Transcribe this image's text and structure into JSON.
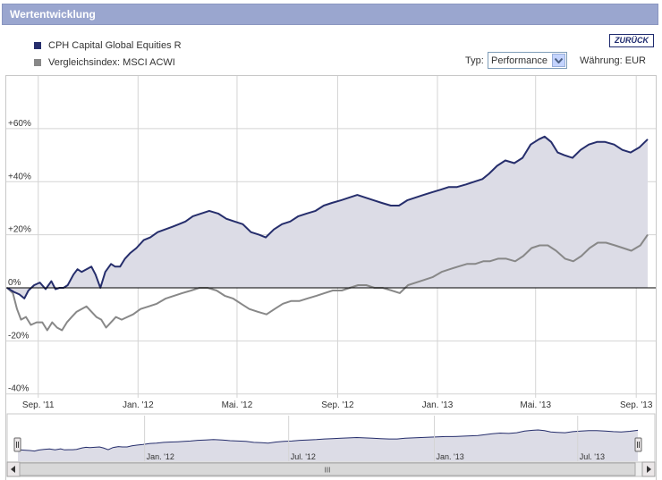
{
  "header": {
    "title": "Wertentwicklung"
  },
  "legend": [
    {
      "label": "CPH Capital Global Equities R",
      "color": "#262e6c"
    },
    {
      "label": "Vergleichsindex: MSCI ACWI",
      "color": "#888888"
    }
  ],
  "controls": {
    "back_label": "ZURÜCK",
    "typ_label": "Typ:",
    "typ_value": "Performance",
    "currency_label": "Währung: EUR"
  },
  "navigator": {
    "tick_labels": [
      "Jan. '12",
      "Jul. '12",
      "Jan. '13",
      "Jul. '13"
    ],
    "scroll_thumb": "III"
  },
  "chart_data": {
    "type": "area",
    "x_tick_labels": [
      "Sep. '11",
      "Jan. '12",
      "Mai. '12",
      "Sep. '12",
      "Jan. '13",
      "Mai. '13",
      "Sep. '13"
    ],
    "x_tick_dates": [
      "2011-09-01",
      "2012-01-01",
      "2012-05-01",
      "2012-09-01",
      "2013-01-01",
      "2013-05-01",
      "2013-09-01"
    ],
    "x_range": [
      "2011-07-25",
      "2013-09-15"
    ],
    "y_tick_labels": [
      "+60%",
      "+40%",
      "+20%",
      "0%",
      "-20%",
      "-40%"
    ],
    "y_ticks": [
      60,
      40,
      20,
      0,
      -20,
      -40
    ],
    "ylim": [
      -40,
      60
    ],
    "grid": true,
    "legend_position": "top-left",
    "series": [
      {
        "name": "CPH Capital Global Equities R",
        "color": "#262e6c",
        "fill": "#dcdce6",
        "points": [
          [
            "2011-07-25",
            0
          ],
          [
            "2011-08-02",
            -1.5
          ],
          [
            "2011-08-09",
            -2.5
          ],
          [
            "2011-08-15",
            -4
          ],
          [
            "2011-08-20",
            -1
          ],
          [
            "2011-08-27",
            1
          ],
          [
            "2011-09-03",
            2
          ],
          [
            "2011-09-10",
            -0.5
          ],
          [
            "2011-09-17",
            2.5
          ],
          [
            "2011-09-22",
            -0.5
          ],
          [
            "2011-09-27",
            0
          ],
          [
            "2011-10-02",
            0
          ],
          [
            "2011-10-07",
            1
          ],
          [
            "2011-10-14",
            5
          ],
          [
            "2011-10-19",
            7
          ],
          [
            "2011-10-24",
            6
          ],
          [
            "2011-10-30",
            7
          ],
          [
            "2011-11-05",
            8
          ],
          [
            "2011-11-10",
            5
          ],
          [
            "2011-11-16",
            0
          ],
          [
            "2011-11-22",
            6
          ],
          [
            "2011-11-29",
            9
          ],
          [
            "2011-12-04",
            8
          ],
          [
            "2011-12-10",
            8
          ],
          [
            "2011-12-16",
            11
          ],
          [
            "2011-12-22",
            13
          ],
          [
            "2011-12-30",
            15
          ],
          [
            "2012-01-08",
            18
          ],
          [
            "2012-01-16",
            19
          ],
          [
            "2012-01-25",
            21
          ],
          [
            "2012-02-03",
            22
          ],
          [
            "2012-02-12",
            23
          ],
          [
            "2012-02-20",
            24
          ],
          [
            "2012-02-28",
            25
          ],
          [
            "2012-03-08",
            27
          ],
          [
            "2012-03-18",
            28
          ],
          [
            "2012-03-28",
            29
          ],
          [
            "2012-04-08",
            28
          ],
          [
            "2012-04-18",
            26
          ],
          [
            "2012-04-28",
            25
          ],
          [
            "2012-05-08",
            24
          ],
          [
            "2012-05-18",
            21
          ],
          [
            "2012-05-28",
            20
          ],
          [
            "2012-06-05",
            19
          ],
          [
            "2012-06-15",
            22
          ],
          [
            "2012-06-25",
            24
          ],
          [
            "2012-07-05",
            25
          ],
          [
            "2012-07-15",
            27
          ],
          [
            "2012-07-25",
            28
          ],
          [
            "2012-08-05",
            29
          ],
          [
            "2012-08-15",
            31
          ],
          [
            "2012-08-25",
            32
          ],
          [
            "2012-09-05",
            33
          ],
          [
            "2012-09-15",
            34
          ],
          [
            "2012-09-25",
            35
          ],
          [
            "2012-10-05",
            34
          ],
          [
            "2012-10-15",
            33
          ],
          [
            "2012-10-25",
            32
          ],
          [
            "2012-11-05",
            31
          ],
          [
            "2012-11-15",
            31
          ],
          [
            "2012-11-25",
            33
          ],
          [
            "2012-12-05",
            34
          ],
          [
            "2012-12-15",
            35
          ],
          [
            "2012-12-25",
            36
          ],
          [
            "2013-01-05",
            37
          ],
          [
            "2013-01-15",
            38
          ],
          [
            "2013-01-25",
            38
          ],
          [
            "2013-02-05",
            39
          ],
          [
            "2013-02-15",
            40
          ],
          [
            "2013-02-25",
            41
          ],
          [
            "2013-03-05",
            43
          ],
          [
            "2013-03-15",
            46
          ],
          [
            "2013-03-25",
            48
          ],
          [
            "2013-04-05",
            47
          ],
          [
            "2013-04-15",
            49
          ],
          [
            "2013-04-25",
            54
          ],
          [
            "2013-05-05",
            56
          ],
          [
            "2013-05-12",
            57
          ],
          [
            "2013-05-20",
            55
          ],
          [
            "2013-05-28",
            51
          ],
          [
            "2013-06-05",
            50
          ],
          [
            "2013-06-15",
            49
          ],
          [
            "2013-06-25",
            52
          ],
          [
            "2013-07-05",
            54
          ],
          [
            "2013-07-15",
            55
          ],
          [
            "2013-07-25",
            55
          ],
          [
            "2013-08-05",
            54
          ],
          [
            "2013-08-15",
            52
          ],
          [
            "2013-08-25",
            51
          ],
          [
            "2013-09-05",
            53
          ],
          [
            "2013-09-15",
            56
          ]
        ]
      },
      {
        "name": "Vergleichsindex: MSCI ACWI",
        "color": "#888888",
        "points": [
          [
            "2011-07-25",
            0
          ],
          [
            "2011-08-01",
            -2
          ],
          [
            "2011-08-06",
            -8
          ],
          [
            "2011-08-11",
            -12
          ],
          [
            "2011-08-17",
            -11
          ],
          [
            "2011-08-23",
            -14
          ],
          [
            "2011-08-30",
            -13
          ],
          [
            "2011-09-06",
            -13
          ],
          [
            "2011-09-12",
            -16
          ],
          [
            "2011-09-18",
            -13
          ],
          [
            "2011-09-24",
            -15
          ],
          [
            "2011-09-30",
            -16
          ],
          [
            "2011-10-06",
            -13
          ],
          [
            "2011-10-12",
            -11
          ],
          [
            "2011-10-18",
            -9
          ],
          [
            "2011-10-24",
            -8
          ],
          [
            "2011-10-30",
            -7
          ],
          [
            "2011-11-05",
            -9
          ],
          [
            "2011-11-11",
            -11
          ],
          [
            "2011-11-17",
            -12
          ],
          [
            "2011-11-23",
            -15
          ],
          [
            "2011-11-29",
            -13
          ],
          [
            "2011-12-05",
            -11
          ],
          [
            "2011-12-12",
            -12
          ],
          [
            "2011-12-19",
            -11
          ],
          [
            "2011-12-26",
            -10
          ],
          [
            "2012-01-04",
            -8
          ],
          [
            "2012-01-14",
            -7
          ],
          [
            "2012-01-24",
            -6
          ],
          [
            "2012-02-04",
            -4
          ],
          [
            "2012-02-14",
            -3
          ],
          [
            "2012-02-24",
            -2
          ],
          [
            "2012-03-06",
            -1
          ],
          [
            "2012-03-16",
            0
          ],
          [
            "2012-03-26",
            0
          ],
          [
            "2012-04-06",
            -1
          ],
          [
            "2012-04-16",
            -3
          ],
          [
            "2012-04-26",
            -4
          ],
          [
            "2012-05-06",
            -6
          ],
          [
            "2012-05-16",
            -8
          ],
          [
            "2012-05-26",
            -9
          ],
          [
            "2012-06-06",
            -10
          ],
          [
            "2012-06-16",
            -8
          ],
          [
            "2012-06-26",
            -6
          ],
          [
            "2012-07-06",
            -5
          ],
          [
            "2012-07-16",
            -5
          ],
          [
            "2012-07-26",
            -4
          ],
          [
            "2012-08-06",
            -3
          ],
          [
            "2012-08-16",
            -2
          ],
          [
            "2012-08-26",
            -1
          ],
          [
            "2012-09-06",
            -1
          ],
          [
            "2012-09-16",
            0
          ],
          [
            "2012-09-26",
            1
          ],
          [
            "2012-10-06",
            1
          ],
          [
            "2012-10-16",
            0
          ],
          [
            "2012-10-26",
            0
          ],
          [
            "2012-11-06",
            -1
          ],
          [
            "2012-11-16",
            -2
          ],
          [
            "2012-11-26",
            1
          ],
          [
            "2012-12-06",
            2
          ],
          [
            "2012-12-16",
            3
          ],
          [
            "2012-12-26",
            4
          ],
          [
            "2013-01-06",
            6
          ],
          [
            "2013-01-16",
            7
          ],
          [
            "2013-01-26",
            8
          ],
          [
            "2013-02-06",
            9
          ],
          [
            "2013-02-16",
            9
          ],
          [
            "2013-02-26",
            10
          ],
          [
            "2013-03-06",
            10
          ],
          [
            "2013-03-16",
            11
          ],
          [
            "2013-03-26",
            11
          ],
          [
            "2013-04-06",
            10
          ],
          [
            "2013-04-16",
            12
          ],
          [
            "2013-04-26",
            15
          ],
          [
            "2013-05-06",
            16
          ],
          [
            "2013-05-16",
            16
          ],
          [
            "2013-05-26",
            14
          ],
          [
            "2013-06-06",
            11
          ],
          [
            "2013-06-16",
            10
          ],
          [
            "2013-06-26",
            12
          ],
          [
            "2013-07-06",
            15
          ],
          [
            "2013-07-16",
            17
          ],
          [
            "2013-07-26",
            17
          ],
          [
            "2013-08-06",
            16
          ],
          [
            "2013-08-16",
            15
          ],
          [
            "2013-08-26",
            14
          ],
          [
            "2013-09-06",
            16
          ],
          [
            "2013-09-15",
            20
          ]
        ]
      }
    ]
  }
}
